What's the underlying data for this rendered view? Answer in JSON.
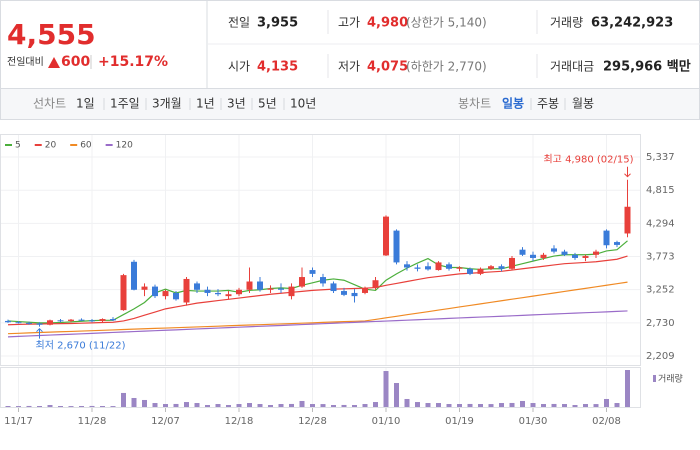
{
  "header": {
    "price": "4,555",
    "change_label": "전일대비",
    "change": "600",
    "rate": "+15.17%"
  },
  "stats": [
    {
      "label": "전일",
      "value": "3,955"
    },
    {
      "label": "고가",
      "value": "4,980",
      "note": "(상한가 5,140)"
    },
    {
      "label": "거래량",
      "value": "63,242,923"
    },
    {
      "label": "시가",
      "value": "4,135"
    },
    {
      "label": "저가",
      "value": "4,075",
      "note": "(하한가 2,770)"
    },
    {
      "label": "거래대금",
      "value": "295,966 백만"
    }
  ],
  "toolbar": {
    "line_label": "선차트",
    "periods": [
      "1일",
      "1주일",
      "3개월",
      "1년",
      "3년",
      "5년",
      "10년"
    ],
    "candle_label": "봉차트",
    "intervals": [
      "일봉",
      "주봉",
      "월봉"
    ]
  },
  "chart_data": {
    "type": "candlestick",
    "categories": [
      null,
      "11/17",
      null,
      null,
      null,
      null,
      null,
      null,
      "11/28",
      null,
      null,
      null,
      null,
      null,
      null,
      "12/07",
      null,
      null,
      null,
      null,
      null,
      null,
      "12/18",
      null,
      null,
      null,
      null,
      null,
      null,
      "12/28",
      null,
      null,
      null,
      null,
      null,
      null,
      "01/10",
      null,
      null,
      null,
      null,
      null,
      null,
      "01/19",
      null,
      null,
      null,
      null,
      null,
      null,
      "01/30",
      null,
      null,
      null,
      null,
      null,
      null,
      "02/08",
      null,
      null
    ],
    "open": [
      2760,
      2740,
      2730,
      2720,
      2700,
      2770,
      2760,
      2780,
      2770,
      2760,
      2790,
      2930,
      3690,
      3250,
      3300,
      3150,
      3200,
      3050,
      3350,
      3250,
      3200,
      3150,
      3180,
      3250,
      3380,
      3250,
      3270,
      3150,
      3300,
      3560,
      3450,
      3350,
      3230,
      3200,
      3200,
      3280,
      3790,
      4180,
      3650,
      3600,
      3620,
      3560,
      3650,
      3580,
      3580,
      3500,
      3580,
      3620,
      3580,
      3880,
      3800,
      3750,
      3900,
      3850,
      3800,
      3750,
      3800,
      4180,
      4000,
      4135
    ],
    "high": [
      2780,
      2760,
      2750,
      2740,
      2780,
      2790,
      2790,
      2800,
      2790,
      2800,
      2820,
      3500,
      3720,
      3350,
      3330,
      3250,
      3230,
      3450,
      3380,
      3300,
      3260,
      3230,
      3280,
      3600,
      3450,
      3320,
      3350,
      3350,
      3600,
      3600,
      3500,
      3380,
      3280,
      3260,
      3300,
      3450,
      4420,
      4200,
      3700,
      3650,
      3680,
      3700,
      3680,
      3620,
      3600,
      3600,
      3640,
      3650,
      3780,
      3920,
      3850,
      3830,
      3950,
      3880,
      3830,
      3800,
      3880,
      4200,
      4020,
      4980
    ],
    "low": [
      2730,
      2720,
      2700,
      2670,
      2690,
      2740,
      2740,
      2760,
      2740,
      2740,
      2760,
      2920,
      3240,
      3150,
      3120,
      3100,
      3080,
      3000,
      3200,
      3150,
      3150,
      3100,
      3150,
      3200,
      3220,
      3200,
      3200,
      3100,
      3280,
      3450,
      3300,
      3200,
      3150,
      3050,
      3180,
      3250,
      3780,
      3650,
      3550,
      3540,
      3550,
      3550,
      3550,
      3540,
      3480,
      3480,
      3560,
      3540,
      3560,
      3780,
      3700,
      3720,
      3820,
      3780,
      3720,
      3700,
      3750,
      3900,
      3920,
      4075
    ],
    "close": [
      2740,
      2730,
      2720,
      2700,
      2770,
      2760,
      2780,
      2770,
      2760,
      2790,
      2770,
      3480,
      3250,
      3300,
      3150,
      3230,
      3100,
      3420,
      3250,
      3200,
      3180,
      3180,
      3250,
      3380,
      3250,
      3270,
      3250,
      3300,
      3450,
      3500,
      3350,
      3230,
      3170,
      3150,
      3280,
      3400,
      4400,
      3680,
      3600,
      3580,
      3570,
      3680,
      3580,
      3600,
      3500,
      3580,
      3620,
      3580,
      3750,
      3800,
      3750,
      3800,
      3850,
      3800,
      3750,
      3780,
      3850,
      3950,
      3955,
      4555
    ],
    "up_color": "#e8403b",
    "down_color": "#3a7bd9",
    "series": [
      {
        "name": "5",
        "color": "#4caf3c",
        "values": [
          2760,
          2750,
          2740,
          2730,
          2730,
          2735,
          2745,
          2755,
          2765,
          2770,
          2770,
          2860,
          2950,
          3050,
          3200,
          3260,
          3200,
          3240,
          3230,
          3230,
          3230,
          3240,
          3210,
          3240,
          3250,
          3270,
          3280,
          3270,
          3320,
          3360,
          3400,
          3420,
          3400,
          3330,
          3260,
          3240,
          3400,
          3500,
          3590,
          3670,
          3740,
          3640,
          3600,
          3600,
          3580,
          3570,
          3580,
          3580,
          3620,
          3660,
          3700,
          3740,
          3780,
          3800,
          3800,
          3800,
          3810,
          3860,
          3880,
          4020
        ]
      },
      {
        "name": "20",
        "color": "#e8403b",
        "values": [
          2700,
          2705,
          2710,
          2712,
          2715,
          2718,
          2720,
          2725,
          2730,
          2735,
          2740,
          2760,
          2800,
          2850,
          2900,
          2950,
          2980,
          3010,
          3040,
          3060,
          3080,
          3100,
          3120,
          3140,
          3160,
          3180,
          3195,
          3210,
          3225,
          3240,
          3250,
          3260,
          3265,
          3270,
          3275,
          3285,
          3320,
          3350,
          3380,
          3410,
          3440,
          3460,
          3480,
          3500,
          3510,
          3520,
          3530,
          3540,
          3560,
          3580,
          3600,
          3620,
          3640,
          3660,
          3670,
          3680,
          3690,
          3710,
          3730,
          3780
        ]
      },
      {
        "name": "60",
        "color": "#f08a24",
        "values": [
          2560,
          2566,
          2572,
          2578,
          2584,
          2590,
          2595,
          2601,
          2607,
          2613,
          2619,
          2625,
          2631,
          2637,
          2643,
          2648,
          2654,
          2660,
          2666,
          2672,
          2678,
          2684,
          2690,
          2696,
          2701,
          2707,
          2713,
          2719,
          2725,
          2731,
          2737,
          2743,
          2749,
          2754,
          2760,
          2784,
          2809,
          2833,
          2858,
          2882,
          2906,
          2931,
          2955,
          2980,
          3004,
          3028,
          3053,
          3077,
          3102,
          3126,
          3150,
          3175,
          3199,
          3224,
          3248,
          3272,
          3297,
          3321,
          3346,
          3370
        ]
      },
      {
        "name": "120",
        "color": "#9a6cc9",
        "values": [
          2510,
          2517,
          2524,
          2531,
          2538,
          2545,
          2551,
          2558,
          2565,
          2572,
          2579,
          2586,
          2593,
          2600,
          2607,
          2614,
          2620,
          2627,
          2634,
          2641,
          2648,
          2655,
          2662,
          2669,
          2676,
          2683,
          2689,
          2696,
          2703,
          2710,
          2717,
          2724,
          2731,
          2738,
          2745,
          2752,
          2758,
          2765,
          2772,
          2779,
          2786,
          2793,
          2800,
          2807,
          2814,
          2821,
          2827,
          2834,
          2841,
          2848,
          2855,
          2862,
          2869,
          2876,
          2883,
          2890,
          2896,
          2903,
          2910,
          2917
        ]
      }
    ],
    "volume": {
      "name": "거래량",
      "color": "#9b86c4",
      "values": [
        1700000,
        1600000,
        1800000,
        1700000,
        3400000,
        1700000,
        1600000,
        1700000,
        1800000,
        1700000,
        1600000,
        24000000,
        15400000,
        12000000,
        6800000,
        5100000,
        5200000,
        8500000,
        6800000,
        3400000,
        5100000,
        3400000,
        5100000,
        6800000,
        5100000,
        3400000,
        5100000,
        5200000,
        10300000,
        5100000,
        5000000,
        3400000,
        3500000,
        3400000,
        5100000,
        8500000,
        61500000,
        41000000,
        13700000,
        8500000,
        6800000,
        6800000,
        5100000,
        5100000,
        5200000,
        5100000,
        5000000,
        6800000,
        6900000,
        10300000,
        6800000,
        5100000,
        5200000,
        5100000,
        3400000,
        5100000,
        5000000,
        13700000,
        6800000,
        63242923
      ]
    },
    "ylim": [
      2209,
      5337
    ],
    "yticks": [
      {
        "value": 5337,
        "label": "5,337"
      },
      {
        "value": 4815,
        "label": "4,815"
      },
      {
        "value": 4294,
        "label": "4,294"
      },
      {
        "value": 3773,
        "label": "3,773"
      },
      {
        "value": 3252,
        "label": "3,252"
      },
      {
        "value": 2730,
        "label": "2,730"
      },
      {
        "value": 2209,
        "label": "2,209"
      }
    ],
    "annotations": [
      "최고 4,980 (02/15)",
      "최저 2,670 (11/22)"
    ],
    "grid": true
  }
}
